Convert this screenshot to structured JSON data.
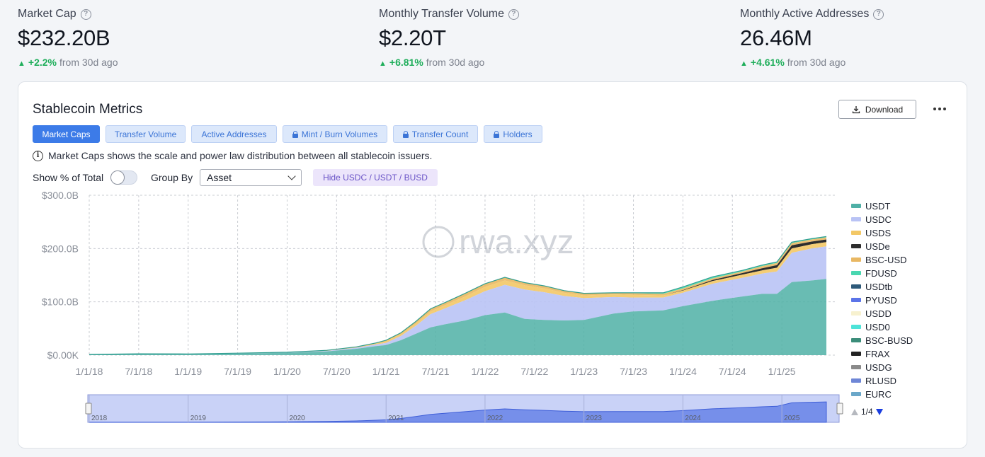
{
  "stats": [
    {
      "label": "Market Cap",
      "value": "$232.20B",
      "delta": "+2.2%",
      "delta_text": "from 30d ago"
    },
    {
      "label": "Monthly Transfer Volume",
      "value": "$2.20T",
      "delta": "+6.81%",
      "delta_text": "from 30d ago"
    },
    {
      "label": "Monthly Active Addresses",
      "value": "26.46M",
      "delta": "+4.61%",
      "delta_text": "from 30d ago"
    }
  ],
  "card": {
    "title": "Stablecoin Metrics",
    "download_label": "Download",
    "tabs": [
      {
        "label": "Market Caps",
        "active": true,
        "locked": false
      },
      {
        "label": "Transfer Volume",
        "active": false,
        "locked": false
      },
      {
        "label": "Active Addresses",
        "active": false,
        "locked": false
      },
      {
        "label": "Mint / Burn Volumes",
        "active": false,
        "locked": true
      },
      {
        "label": "Transfer Count",
        "active": false,
        "locked": true
      },
      {
        "label": "Holders",
        "active": false,
        "locked": true
      }
    ],
    "info_text": "Market Caps shows the scale and power law distribution between all stablecoin issuers.",
    "show_pct_label": "Show % of Total",
    "group_by_label": "Group By",
    "group_by_value": "Asset",
    "hide_button_label": "Hide USDC / USDT / BUSD",
    "watermark": "rwa.xyz"
  },
  "legend": {
    "items": [
      {
        "name": "USDT",
        "color": "#4fb0a6"
      },
      {
        "name": "USDC",
        "color": "#b9c3f5"
      },
      {
        "name": "USDS",
        "color": "#f3c866"
      },
      {
        "name": "USDe",
        "color": "#2d2d2d"
      },
      {
        "name": "BSC-USD",
        "color": "#e9b863"
      },
      {
        "name": "FDUSD",
        "color": "#49d7b0"
      },
      {
        "name": "USDtb",
        "color": "#2e5a7a"
      },
      {
        "name": "PYUSD",
        "color": "#5b74e8"
      },
      {
        "name": "USDD",
        "color": "#f7f1cf"
      },
      {
        "name": "USD0",
        "color": "#4de3d8"
      },
      {
        "name": "BSC-BUSD",
        "color": "#3b8d7a"
      },
      {
        "name": "FRAX",
        "color": "#222222"
      },
      {
        "name": "USDG",
        "color": "#8a8a8a"
      },
      {
        "name": "RLUSD",
        "color": "#6e86d6"
      },
      {
        "name": "EURC",
        "color": "#6aa7c9"
      }
    ],
    "page": "1/4"
  },
  "chart_data": {
    "type": "area",
    "stacked": true,
    "ylim": [
      0,
      300
    ],
    "y_ticks": [
      "$0.00K",
      "$100.0B",
      "$200.0B",
      "$300.0B"
    ],
    "x_ticks": [
      "1/1/18",
      "7/1/18",
      "1/1/19",
      "7/1/19",
      "1/1/20",
      "7/1/20",
      "1/1/21",
      "7/1/21",
      "1/1/22",
      "7/1/22",
      "1/1/23",
      "7/1/23",
      "1/1/24",
      "7/1/24",
      "1/1/25"
    ],
    "navigator_ticks": [
      "2018",
      "2019",
      "2020",
      "2021",
      "2022",
      "2023",
      "2024",
      "2025"
    ],
    "x": [
      2018.0,
      2018.5,
      2019.0,
      2019.5,
      2020.0,
      2020.4,
      2020.7,
      2020.9,
      2021.0,
      2021.15,
      2021.3,
      2021.45,
      2021.6,
      2021.8,
      2022.0,
      2022.2,
      2022.4,
      2022.6,
      2022.8,
      2023.0,
      2023.3,
      2023.5,
      2023.8,
      2024.0,
      2024.3,
      2024.6,
      2024.8,
      2024.95,
      2025.1,
      2025.3,
      2025.45
    ],
    "series": [
      {
        "name": "USDT",
        "values": [
          1.3,
          2.5,
          2,
          3,
          4.5,
          7,
          12,
          17,
          19,
          28,
          40,
          52,
          58,
          65,
          75,
          80,
          68,
          66,
          65,
          66,
          78,
          82,
          84,
          92,
          102,
          110,
          115,
          115,
          137,
          140,
          143
        ]
      },
      {
        "name": "USDC",
        "values": [
          0,
          0,
          0,
          0.5,
          0.5,
          1,
          2,
          3,
          4,
          8,
          15,
          25,
          30,
          38,
          45,
          52,
          55,
          52,
          46,
          41,
          31,
          26,
          24,
          25,
          32,
          35,
          38,
          42,
          55,
          60,
          61
        ]
      },
      {
        "name": "USDS",
        "values": [
          0,
          0,
          0.2,
          0.2,
          0.5,
          1,
          1,
          2,
          3,
          3,
          4,
          5,
          6,
          7,
          8,
          8,
          8,
          7,
          6,
          5,
          5,
          5,
          4,
          4,
          5,
          6,
          6,
          7,
          8,
          8,
          8
        ]
      },
      {
        "name": "USDe",
        "values": [
          0,
          0,
          0,
          0,
          0,
          0,
          0,
          0,
          0,
          0,
          0,
          0,
          0,
          0,
          0,
          0,
          0,
          0,
          0,
          0,
          0,
          0,
          0,
          1,
          2,
          3,
          4,
          5,
          6,
          5,
          5
        ]
      },
      {
        "name": "BSC-USD",
        "values": [
          0,
          0,
          0,
          0,
          0,
          0,
          0.5,
          1,
          2,
          3,
          4,
          5,
          5,
          6,
          6,
          6,
          5,
          5,
          4,
          4,
          3,
          3,
          3,
          3,
          3,
          3,
          4,
          4,
          4,
          4,
          4
        ]
      },
      {
        "name": "FDUSD",
        "values": [
          0,
          0,
          0,
          0,
          0,
          0,
          0,
          0,
          0,
          0,
          0,
          0,
          0,
          0,
          0,
          0,
          0,
          0,
          0,
          0,
          0,
          1,
          2,
          3,
          3,
          2,
          2,
          2,
          2,
          1.5,
          1.5
        ]
      }
    ]
  }
}
